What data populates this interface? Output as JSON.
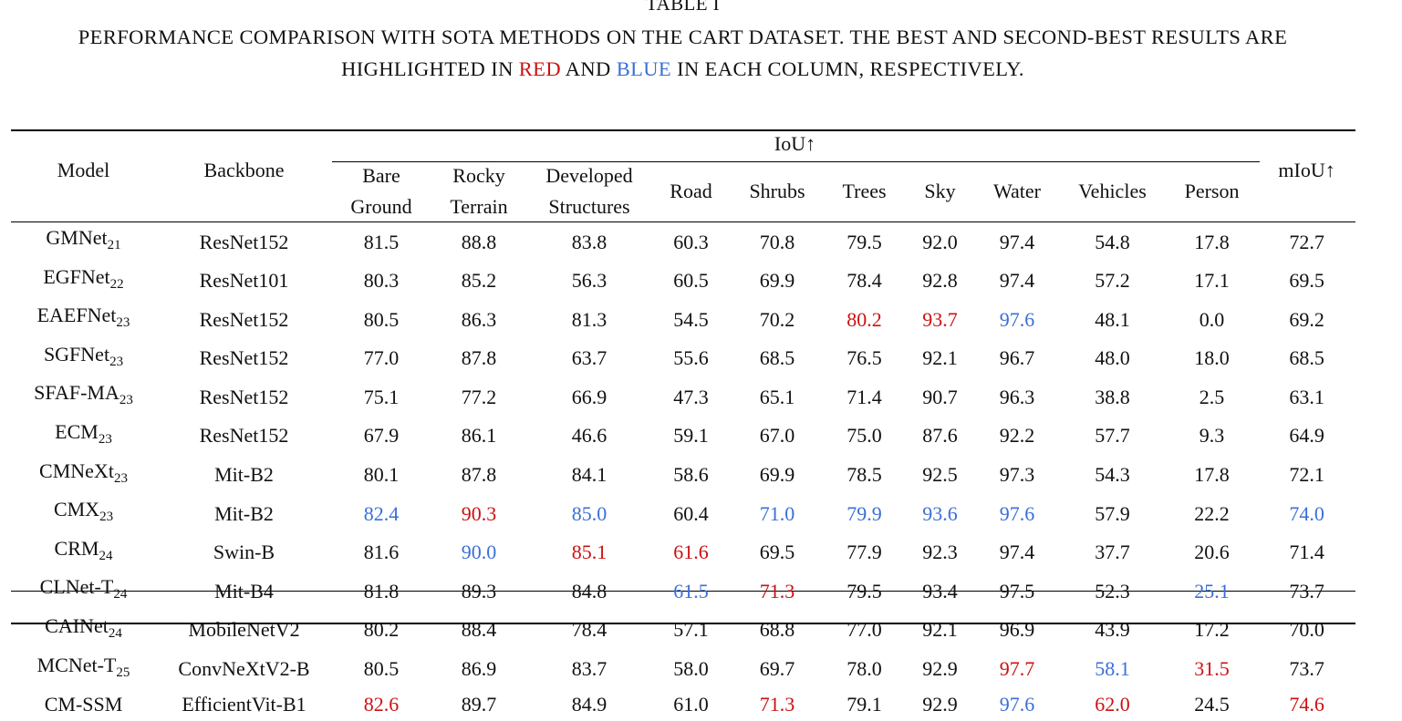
{
  "caption": {
    "label": "TABLE I",
    "line1": "PERFORMANCE COMPARISON WITH SOTA METHODS ON THE CART DATASET. THE BEST AND SECOND-BEST RESULTS ARE",
    "line2_a": "HIGHLIGHTED IN ",
    "line2_red": "RED",
    "line2_b": " AND ",
    "line2_blue": "BLUE",
    "line2_c": " IN EACH COLUMN, RESPECTIVELY."
  },
  "colors": {
    "best": "#cc1111",
    "second": "#3a6fd8",
    "text": "#111111"
  },
  "header": {
    "model": "Model",
    "backbone": "Backbone",
    "iou_group": "IoU↑",
    "miou": "mIoU↑",
    "classes": [
      {
        "l1": "Bare",
        "l2": "Ground"
      },
      {
        "l1": "Rocky",
        "l2": "Terrain"
      },
      {
        "l1": "Developed",
        "l2": "Structures"
      },
      {
        "l1": "Road",
        "l2": ""
      },
      {
        "l1": "Shrubs",
        "l2": ""
      },
      {
        "l1": "Trees",
        "l2": ""
      },
      {
        "l1": "Sky",
        "l2": ""
      },
      {
        "l1": "Water",
        "l2": ""
      },
      {
        "l1": "Vehicles",
        "l2": ""
      },
      {
        "l1": "Person",
        "l2": ""
      }
    ]
  },
  "rows": [
    {
      "model": "GMNet",
      "sub": "21",
      "backbone": "ResNet152",
      "values": [
        "81.5",
        "88.8",
        "83.8",
        "60.3",
        "70.8",
        "79.5",
        "92.0",
        "97.4",
        "54.8",
        "17.8",
        "72.7"
      ],
      "hl": [
        "",
        "",
        "",
        "",
        "",
        "",
        "",
        "",
        "",
        "",
        ""
      ]
    },
    {
      "model": "EGFNet",
      "sub": "22",
      "backbone": "ResNet101",
      "values": [
        "80.3",
        "85.2",
        "56.3",
        "60.5",
        "69.9",
        "78.4",
        "92.8",
        "97.4",
        "57.2",
        "17.1",
        "69.5"
      ],
      "hl": [
        "",
        "",
        "",
        "",
        "",
        "",
        "",
        "",
        "",
        "",
        ""
      ]
    },
    {
      "model": "EAEFNet",
      "sub": "23",
      "backbone": "ResNet152",
      "values": [
        "80.5",
        "86.3",
        "81.3",
        "54.5",
        "70.2",
        "80.2",
        "93.7",
        "97.6",
        "48.1",
        "0.0",
        "69.2"
      ],
      "hl": [
        "",
        "",
        "",
        "",
        "",
        "red",
        "red",
        "blue",
        "",
        "",
        ""
      ]
    },
    {
      "model": "SGFNet",
      "sub": "23",
      "backbone": "ResNet152",
      "values": [
        "77.0",
        "87.8",
        "63.7",
        "55.6",
        "68.5",
        "76.5",
        "92.1",
        "96.7",
        "48.0",
        "18.0",
        "68.5"
      ],
      "hl": [
        "",
        "",
        "",
        "",
        "",
        "",
        "",
        "",
        "",
        "",
        ""
      ]
    },
    {
      "model": "SFAF-MA",
      "sub": "23",
      "backbone": "ResNet152",
      "values": [
        "75.1",
        "77.2",
        "66.9",
        "47.3",
        "65.1",
        "71.4",
        "90.7",
        "96.3",
        "38.8",
        "2.5",
        "63.1"
      ],
      "hl": [
        "",
        "",
        "",
        "",
        "",
        "",
        "",
        "",
        "",
        "",
        ""
      ]
    },
    {
      "model": "ECM",
      "sub": "23",
      "backbone": "ResNet152",
      "values": [
        "67.9",
        "86.1",
        "46.6",
        "59.1",
        "67.0",
        "75.0",
        "87.6",
        "92.2",
        "57.7",
        "9.3",
        "64.9"
      ],
      "hl": [
        "",
        "",
        "",
        "",
        "",
        "",
        "",
        "",
        "",
        "",
        ""
      ]
    },
    {
      "model": "CMNeXt",
      "sub": "23",
      "backbone": "Mit-B2",
      "values": [
        "80.1",
        "87.8",
        "84.1",
        "58.6",
        "69.9",
        "78.5",
        "92.5",
        "97.3",
        "54.3",
        "17.8",
        "72.1"
      ],
      "hl": [
        "",
        "",
        "",
        "",
        "",
        "",
        "",
        "",
        "",
        "",
        ""
      ]
    },
    {
      "model": "CMX",
      "sub": "23",
      "backbone": "Mit-B2",
      "values": [
        "82.4",
        "90.3",
        "85.0",
        "60.4",
        "71.0",
        "79.9",
        "93.6",
        "97.6",
        "57.9",
        "22.2",
        "74.0"
      ],
      "hl": [
        "blue",
        "red",
        "blue",
        "",
        "blue",
        "blue",
        "blue",
        "blue",
        "",
        "",
        "blue"
      ]
    },
    {
      "model": "CRM",
      "sub": "24",
      "backbone": "Swin-B",
      "values": [
        "81.6",
        "90.0",
        "85.1",
        "61.6",
        "69.5",
        "77.9",
        "92.3",
        "97.4",
        "37.7",
        "20.6",
        "71.4"
      ],
      "hl": [
        "",
        "blue",
        "red",
        "red",
        "",
        "",
        "",
        "",
        "",
        "",
        ""
      ]
    },
    {
      "model": "CLNet-T",
      "sub": "24",
      "backbone": "Mit-B4",
      "values": [
        "81.8",
        "89.3",
        "84.8",
        "61.5",
        "71.3",
        "79.5",
        "93.4",
        "97.5",
        "52.3",
        "25.1",
        "73.7"
      ],
      "hl": [
        "",
        "",
        "",
        "blue",
        "red",
        "",
        "",
        "",
        "",
        "blue",
        ""
      ]
    },
    {
      "model": "CAINet",
      "sub": "24",
      "backbone": "MobileNetV2",
      "values": [
        "80.2",
        "88.4",
        "78.4",
        "57.1",
        "68.8",
        "77.0",
        "92.1",
        "96.9",
        "43.9",
        "17.2",
        "70.0"
      ],
      "hl": [
        "",
        "",
        "",
        "",
        "",
        "",
        "",
        "",
        "",
        "",
        ""
      ]
    },
    {
      "model": "MCNet-T",
      "sub": "25",
      "backbone": "ConvNeXtV2-B",
      "values": [
        "80.5",
        "86.9",
        "83.7",
        "58.0",
        "69.7",
        "78.0",
        "92.9",
        "97.7",
        "58.1",
        "31.5",
        "73.7"
      ],
      "hl": [
        "",
        "",
        "",
        "",
        "",
        "",
        "",
        "red",
        "blue",
        "red",
        ""
      ]
    }
  ],
  "final_row": {
    "model": "CM-SSM",
    "backbone": "EfficientVit-B1",
    "values": [
      "82.6",
      "89.7",
      "84.9",
      "61.0",
      "71.3",
      "79.1",
      "92.9",
      "97.6",
      "62.0",
      "24.5",
      "74.6"
    ],
    "hl": [
      "red",
      "",
      "",
      "",
      "red",
      "",
      "",
      "blue",
      "red",
      "",
      "red"
    ]
  }
}
